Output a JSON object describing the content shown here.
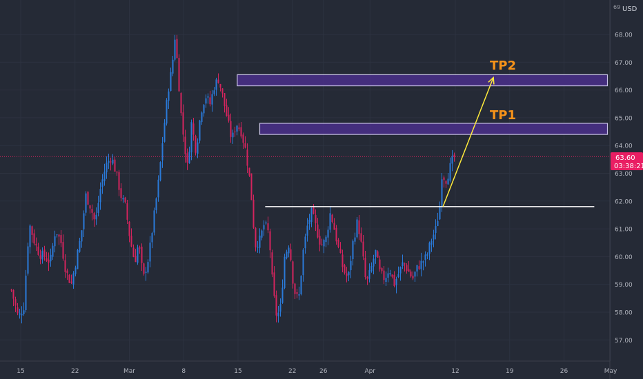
{
  "currency": "USD",
  "price_label": {
    "value": "63.60",
    "countdown": "03:38:21",
    "bg": "#e91e63"
  },
  "annotations": {
    "tp1": {
      "label": "TP1",
      "color": "#f7931a"
    },
    "tp2": {
      "label": "TP2",
      "color": "#f7931a"
    },
    "zone_fill": "#4a2f8a",
    "zone_border": "#c9c2e6",
    "support_color": "#ffffff",
    "arrow_color": "#ffeb3b"
  },
  "colors": {
    "background": "#252a36",
    "up": "#2a7ad9",
    "down": "#d4245d"
  },
  "chart_data": {
    "type": "candlestick",
    "title": "",
    "y_axis": {
      "unit": "USD",
      "min": 56.5,
      "max": 69.3,
      "ticks": [
        "57.00",
        "58.00",
        "59.00",
        "60.00",
        "61.00",
        "62.00",
        "63.00",
        "64.00",
        "65.00",
        "66.00",
        "67.00",
        "68.00"
      ],
      "partial_top_label": "69"
    },
    "x_axis": {
      "ticks": [
        {
          "label": "15",
          "day": 0
        },
        {
          "label": "22",
          "day": 7
        },
        {
          "label": "Mar",
          "day": 14
        },
        {
          "label": "8",
          "day": 21
        },
        {
          "label": "15",
          "day": 28
        },
        {
          "label": "22",
          "day": 35
        },
        {
          "label": "26",
          "day": 39
        },
        {
          "label": "Apr",
          "day": 45
        },
        {
          "label": "12",
          "day": 56
        },
        {
          "label": "19",
          "day": 63
        },
        {
          "label": "26",
          "day": 70
        },
        {
          "label": "May",
          "day": 76
        }
      ]
    },
    "last_price": 63.6,
    "price_path": [
      [
        -1.2,
        58.8
      ],
      [
        -0.3,
        57.8
      ],
      [
        0.4,
        58.2
      ],
      [
        1.1,
        61.2
      ],
      [
        1.8,
        60.5
      ],
      [
        2.4,
        60.1
      ],
      [
        3.1,
        60.0
      ],
      [
        3.8,
        59.8
      ],
      [
        4.5,
        61.0
      ],
      [
        5.2,
        60.5
      ],
      [
        5.8,
        59.5
      ],
      [
        6.5,
        59.0
      ],
      [
        7.1,
        59.8
      ],
      [
        7.8,
        60.8
      ],
      [
        8.4,
        62.2
      ],
      [
        9.0,
        61.8
      ],
      [
        9.6,
        61.2
      ],
      [
        10.3,
        62.5
      ],
      [
        11.0,
        63.3
      ],
      [
        11.7,
        63.6
      ],
      [
        12.3,
        63.0
      ],
      [
        12.9,
        62.2
      ],
      [
        13.5,
        61.8
      ],
      [
        14.1,
        60.6
      ],
      [
        14.7,
        59.8
      ],
      [
        15.2,
        60.5
      ],
      [
        15.8,
        59.2
      ],
      [
        16.5,
        60.0
      ],
      [
        17.2,
        61.5
      ],
      [
        17.8,
        62.8
      ],
      [
        18.4,
        64.5
      ],
      [
        19.0,
        66.0
      ],
      [
        19.5,
        66.8
      ],
      [
        19.9,
        68.0
      ],
      [
        20.3,
        66.5
      ],
      [
        20.7,
        65.0
      ],
      [
        21.1,
        64.0
      ],
      [
        21.5,
        63.2
      ],
      [
        22.0,
        64.8
      ],
      [
        22.6,
        63.8
      ],
      [
        23.2,
        65.2
      ],
      [
        23.8,
        65.8
      ],
      [
        24.4,
        65.5
      ],
      [
        25.0,
        66.2
      ],
      [
        25.5,
        66.4
      ],
      [
        26.0,
        65.8
      ],
      [
        26.6,
        65.0
      ],
      [
        27.2,
        64.2
      ],
      [
        27.8,
        64.8
      ],
      [
        28.4,
        64.5
      ],
      [
        29.0,
        63.8
      ],
      [
        29.6,
        62.6
      ],
      [
        30.2,
        60.4
      ],
      [
        30.8,
        60.6
      ],
      [
        31.4,
        61.2
      ],
      [
        32.0,
        60.8
      ],
      [
        32.5,
        58.8
      ],
      [
        33.0,
        57.8
      ],
      [
        33.5,
        58.2
      ],
      [
        34.0,
        60.0
      ],
      [
        34.6,
        60.5
      ],
      [
        35.2,
        58.8
      ],
      [
        35.8,
        58.4
      ],
      [
        36.4,
        60.2
      ],
      [
        37.0,
        61.2
      ],
      [
        37.5,
        61.6
      ],
      [
        38.1,
        61.0
      ],
      [
        38.7,
        60.4
      ],
      [
        39.3,
        60.6
      ],
      [
        39.9,
        61.6
      ],
      [
        40.4,
        61.0
      ],
      [
        41.0,
        60.2
      ],
      [
        41.6,
        59.5
      ],
      [
        42.2,
        59.2
      ],
      [
        42.8,
        60.5
      ],
      [
        43.4,
        61.3
      ],
      [
        44.0,
        60.2
      ],
      [
        44.5,
        59.0
      ],
      [
        45.1,
        59.5
      ],
      [
        45.7,
        60.2
      ],
      [
        46.3,
        59.4
      ],
      [
        46.9,
        59.2
      ],
      [
        47.5,
        59.6
      ],
      [
        48.1,
        59.0
      ],
      [
        48.7,
        59.4
      ],
      [
        49.3,
        59.8
      ],
      [
        49.9,
        59.5
      ],
      [
        50.5,
        59.2
      ],
      [
        51.1,
        59.6
      ],
      [
        51.7,
        59.8
      ],
      [
        52.3,
        60.0
      ],
      [
        52.9,
        60.6
      ],
      [
        53.5,
        61.0
      ],
      [
        54.0,
        61.8
      ],
      [
        54.3,
        63.1
      ],
      [
        54.7,
        62.7
      ],
      [
        55.1,
        63.0
      ],
      [
        55.5,
        63.4
      ],
      [
        55.9,
        63.6
      ]
    ],
    "overlays": {
      "supply_zones": [
        {
          "name": "TP2 zone",
          "x_start_day": 27.9,
          "x_end_day": 75.6,
          "low": 66.15,
          "high": 66.55
        },
        {
          "name": "TP1 zone",
          "x_start_day": 30.8,
          "x_end_day": 75.6,
          "low": 64.4,
          "high": 64.8
        }
      ],
      "support_line": {
        "x_start_day": 31.5,
        "x_end_day": 73.9,
        "price": 61.8
      },
      "projection_arrow": {
        "from": {
          "day": 54.4,
          "price": 61.8
        },
        "to": {
          "day": 60.9,
          "price": 66.45
        }
      }
    }
  }
}
